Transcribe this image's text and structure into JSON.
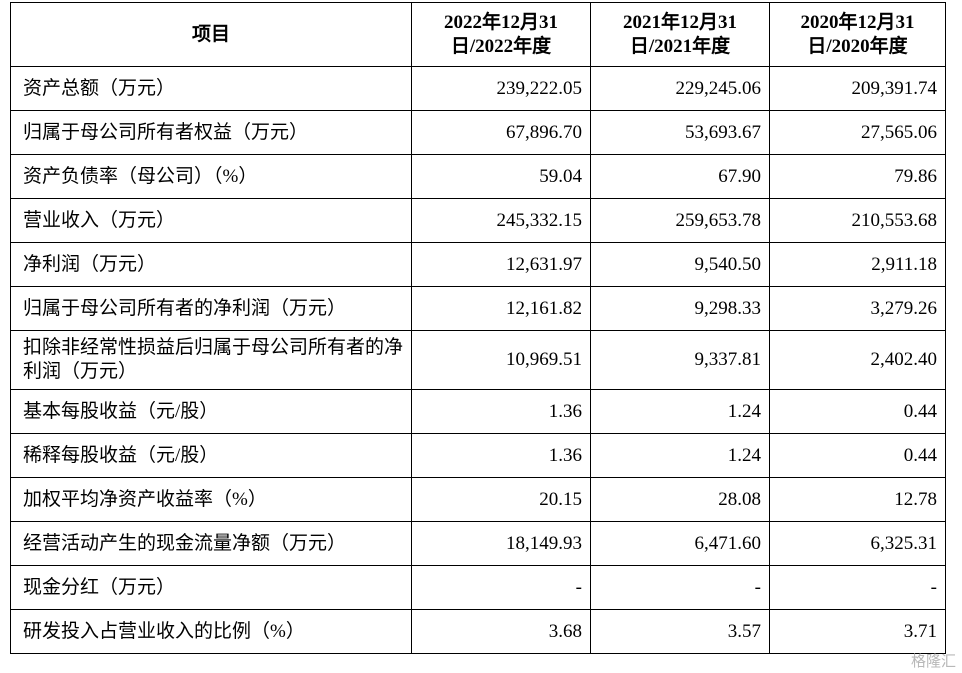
{
  "table": {
    "columns": [
      "项目",
      "2022年12月31日/2022年度",
      "2021年12月31日/2021年度",
      "2020年12月31日/2020年度"
    ],
    "rows": [
      [
        "资产总额（万元）",
        "239,222.05",
        "229,245.06",
        "209,391.74"
      ],
      [
        "归属于母公司所有者权益（万元）",
        "67,896.70",
        "53,693.67",
        "27,565.06"
      ],
      [
        "资产负债率（母公司）（%）",
        "59.04",
        "67.90",
        "79.86"
      ],
      [
        "营业收入（万元）",
        "245,332.15",
        "259,653.78",
        "210,553.68"
      ],
      [
        "净利润（万元）",
        "12,631.97",
        "9,540.50",
        "2,911.18"
      ],
      [
        "归属于母公司所有者的净利润（万元）",
        "12,161.82",
        "9,298.33",
        "3,279.26"
      ],
      [
        "扣除非经常性损益后归属于母公司所有者的净利润（万元）",
        "10,969.51",
        "9,337.81",
        "2,402.40"
      ],
      [
        "基本每股收益（元/股）",
        "1.36",
        "1.24",
        "0.44"
      ],
      [
        "稀释每股收益（元/股）",
        "1.36",
        "1.24",
        "0.44"
      ],
      [
        "加权平均净资产收益率（%）",
        "20.15",
        "28.08",
        "12.78"
      ],
      [
        "经营活动产生的现金流量净额（万元）",
        "18,149.93",
        "6,471.60",
        "6,325.31"
      ],
      [
        "现金分红（万元）",
        "-",
        "-",
        "-"
      ],
      [
        "研发投入占营业收入的比例（%）",
        "3.68",
        "3.57",
        "3.71"
      ]
    ]
  },
  "watermark": "格隆汇"
}
